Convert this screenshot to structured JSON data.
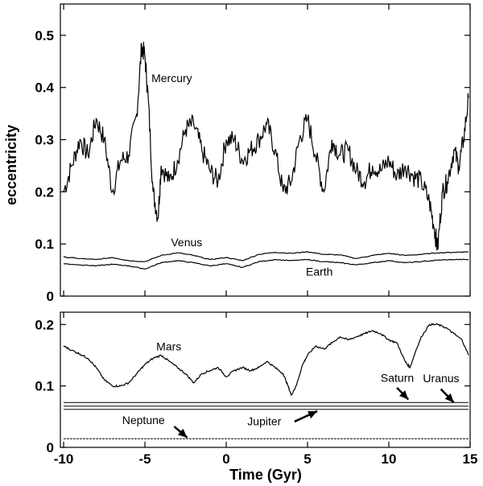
{
  "chart_data": [
    {
      "type": "line",
      "panel": "top",
      "xlabel": "",
      "ylabel": "eccentricity",
      "xlim": [
        -10.2,
        15
      ],
      "ylim": [
        0,
        0.56
      ],
      "yticks": [
        0,
        0.1,
        0.2,
        0.3,
        0.4,
        0.5
      ],
      "ytick_labels": [
        "0",
        "0.1",
        "0.2",
        "0.3",
        "0.4",
        "0.5"
      ],
      "grid": false,
      "annotations": [
        {
          "text": "Mercury",
          "x": -4.6,
          "y": 0.41
        },
        {
          "text": "Venus",
          "x": -3.4,
          "y": 0.096
        },
        {
          "text": "Earth",
          "x": 4.9,
          "y": 0.039
        }
      ],
      "series": [
        {
          "name": "Mercury",
          "x": [
            -10.0,
            -9.5,
            -9.0,
            -8.5,
            -8.0,
            -7.5,
            -7.0,
            -6.5,
            -6.0,
            -5.5,
            -5.2,
            -5.0,
            -4.8,
            -4.5,
            -4.2,
            -4.0,
            -3.5,
            -3.0,
            -2.5,
            -2.0,
            -1.5,
            -1.0,
            -0.5,
            0.0,
            0.5,
            1.0,
            1.5,
            2.0,
            2.5,
            3.0,
            3.5,
            4.0,
            4.5,
            5.0,
            5.5,
            6.0,
            6.5,
            7.0,
            7.5,
            8.0,
            8.5,
            9.0,
            9.5,
            10.0,
            10.5,
            11.0,
            11.5,
            12.0,
            12.5,
            12.8,
            13.0,
            13.3,
            13.6,
            14.0,
            14.3,
            14.6,
            14.9
          ],
          "values": [
            0.2,
            0.25,
            0.3,
            0.27,
            0.34,
            0.3,
            0.2,
            0.26,
            0.27,
            0.35,
            0.48,
            0.46,
            0.38,
            0.2,
            0.15,
            0.25,
            0.22,
            0.26,
            0.32,
            0.33,
            0.28,
            0.24,
            0.22,
            0.3,
            0.3,
            0.26,
            0.28,
            0.3,
            0.33,
            0.28,
            0.2,
            0.22,
            0.3,
            0.34,
            0.27,
            0.2,
            0.3,
            0.27,
            0.28,
            0.24,
            0.22,
            0.25,
            0.24,
            0.26,
            0.23,
            0.25,
            0.23,
            0.22,
            0.18,
            0.13,
            0.09,
            0.2,
            0.22,
            0.28,
            0.25,
            0.3,
            0.38
          ]
        },
        {
          "name": "Venus",
          "x": [
            -10.0,
            -9.0,
            -8.0,
            -7.0,
            -6.0,
            -5.0,
            -4.0,
            -3.0,
            -2.0,
            -1.0,
            0.0,
            1.0,
            2.0,
            3.0,
            4.0,
            5.0,
            6.0,
            7.0,
            8.0,
            9.0,
            10.0,
            11.0,
            12.0,
            13.0,
            14.0,
            14.9
          ],
          "values": [
            0.075,
            0.072,
            0.07,
            0.074,
            0.068,
            0.066,
            0.078,
            0.083,
            0.078,
            0.07,
            0.074,
            0.068,
            0.08,
            0.084,
            0.082,
            0.085,
            0.08,
            0.079,
            0.072,
            0.078,
            0.082,
            0.078,
            0.08,
            0.083,
            0.084,
            0.085
          ]
        },
        {
          "name": "Earth",
          "x": [
            -10.0,
            -9.0,
            -8.0,
            -7.0,
            -6.0,
            -5.0,
            -4.0,
            -3.0,
            -2.0,
            -1.0,
            0.0,
            1.0,
            2.0,
            3.0,
            4.0,
            5.0,
            6.0,
            7.0,
            8.0,
            9.0,
            10.0,
            11.0,
            12.0,
            13.0,
            14.0,
            14.9
          ],
          "values": [
            0.062,
            0.06,
            0.058,
            0.061,
            0.058,
            0.052,
            0.064,
            0.068,
            0.064,
            0.058,
            0.062,
            0.055,
            0.066,
            0.07,
            0.068,
            0.07,
            0.066,
            0.064,
            0.06,
            0.064,
            0.068,
            0.064,
            0.066,
            0.069,
            0.07,
            0.07
          ]
        }
      ]
    },
    {
      "type": "line",
      "panel": "bottom",
      "xlabel": "Time (Gyr)",
      "ylabel": "",
      "xlim": [
        -10.2,
        15
      ],
      "ylim": [
        0,
        0.22
      ],
      "xticks": [
        -10,
        -5,
        0,
        5,
        10,
        15
      ],
      "xtick_labels": [
        "-10",
        "-5",
        "0",
        "5",
        "10",
        "15"
      ],
      "yticks": [
        0,
        0.1,
        0.2
      ],
      "ytick_labels": [
        "0",
        "0.1",
        "0.2"
      ],
      "grid": false,
      "annotations": [
        {
          "text": "Mars",
          "x": -4.3,
          "y": 0.158
        },
        {
          "text": "Saturn",
          "x": 9.5,
          "y": 0.107
        },
        {
          "text": "Uranus",
          "x": 12.1,
          "y": 0.106
        },
        {
          "text": "Jupiter",
          "x": 1.3,
          "y": 0.036
        },
        {
          "text": "Neptune",
          "x": -6.4,
          "y": 0.038
        }
      ],
      "series": [
        {
          "name": "Mars",
          "x": [
            -10.0,
            -9.5,
            -9.0,
            -8.5,
            -8.0,
            -7.5,
            -7.0,
            -6.5,
            -6.0,
            -5.5,
            -5.0,
            -4.5,
            -4.0,
            -3.5,
            -3.0,
            -2.5,
            -2.0,
            -1.5,
            -1.0,
            -0.5,
            0.0,
            0.5,
            1.0,
            1.5,
            2.0,
            2.5,
            3.0,
            3.5,
            3.8,
            4.0,
            4.3,
            4.7,
            5.0,
            5.5,
            6.0,
            6.5,
            7.0,
            7.5,
            8.0,
            8.5,
            9.0,
            9.5,
            10.0,
            10.5,
            11.0,
            11.3,
            11.7,
            12.0,
            12.5,
            13.0,
            13.5,
            14.0,
            14.5,
            14.9
          ],
          "values": [
            0.165,
            0.158,
            0.152,
            0.145,
            0.13,
            0.11,
            0.1,
            0.1,
            0.105,
            0.12,
            0.135,
            0.145,
            0.15,
            0.14,
            0.13,
            0.12,
            0.105,
            0.12,
            0.125,
            0.13,
            0.115,
            0.125,
            0.13,
            0.125,
            0.13,
            0.14,
            0.13,
            0.12,
            0.1,
            0.085,
            0.1,
            0.135,
            0.15,
            0.165,
            0.16,
            0.17,
            0.18,
            0.175,
            0.18,
            0.185,
            0.19,
            0.185,
            0.175,
            0.17,
            0.14,
            0.13,
            0.16,
            0.18,
            0.2,
            0.2,
            0.195,
            0.185,
            0.175,
            0.15
          ]
        },
        {
          "name": "Jupiter",
          "x": [
            -10.0,
            14.9
          ],
          "values": [
            0.062,
            0.062
          ]
        },
        {
          "name": "Saturn",
          "x": [
            -10.0,
            14.9
          ],
          "values": [
            0.073,
            0.073
          ]
        },
        {
          "name": "Uranus",
          "x": [
            -10.0,
            14.9
          ],
          "values": [
            0.067,
            0.067
          ]
        },
        {
          "name": "Neptune",
          "x": [
            -10.0,
            14.9
          ],
          "values": [
            0.014,
            0.014
          ]
        }
      ]
    }
  ]
}
